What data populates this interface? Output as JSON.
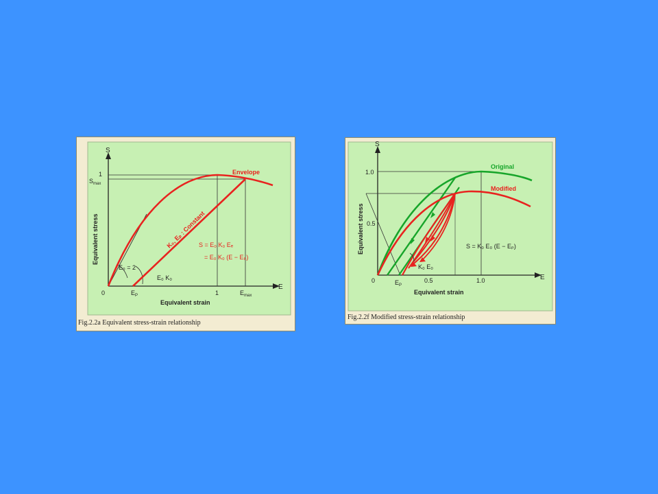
{
  "figure_a": {
    "caption": "Fig.2.2a   Equivalent stress-strain relationship",
    "axis_y_symbol": "S",
    "axis_x_symbol": "E",
    "ylabel": "Equivalent stress",
    "xlabel": "Equivalent strain",
    "label_one_y": "1",
    "label_smax": "S",
    "label_smax_sub": "max",
    "label_origin": "0",
    "label_ep": "E",
    "label_ep_sub": "P",
    "label_one_x": "1",
    "label_emax": "E",
    "label_emax_sub": "max",
    "curve_label": "Envelope",
    "constant_label": "K₀, Eₚ : Constant",
    "eq1": "S = E₀ K₀ Eₑ",
    "eq2": "= E₀ K₀ (E − Eₚ)",
    "slope_label": "E₀ = 2",
    "unload_label": "E₀ K₀",
    "colors": {
      "panel": "#c7f0b3",
      "curve": "#e8231f",
      "axis": "#222222"
    }
  },
  "figure_b": {
    "caption": "Fig.2.2f   Modified stress-strain relationship",
    "axis_y_symbol": "S",
    "axis_x_symbol": "E",
    "ylabel": "Equivalent stress",
    "xlabel": "Equivalent strain",
    "tick_y_1": "1.0",
    "tick_y_05": "0.5",
    "label_origin": "0",
    "label_ep": "E",
    "label_ep_sub": "P",
    "tick_x_05": "0.5",
    "tick_x_1": "1.0",
    "legend_original": "Original",
    "legend_modified": "Modified",
    "eq": "S = K₀ E₀ (E − Eₚ)",
    "slope_label": "K₀ E₀",
    "colors": {
      "panel": "#c7f0b3",
      "original": "#17a52a",
      "modified": "#e8231f",
      "axis": "#222222"
    }
  }
}
